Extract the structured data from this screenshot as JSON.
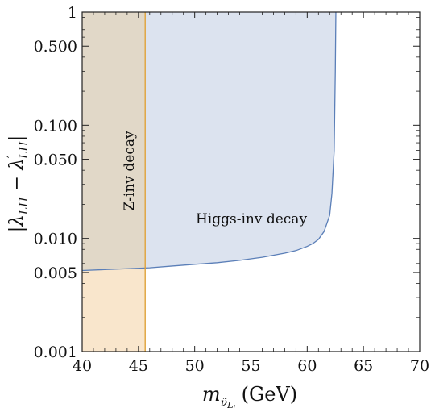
{
  "chart_data": {
    "type": "area",
    "xlabel": "m_ν̃Li (GeV)",
    "ylabel": "|λLH − λ′LH|",
    "xlim": [
      40,
      70
    ],
    "ylim": [
      0.001,
      1
    ],
    "yscale": "log",
    "grid": false,
    "x_ticks": [
      40,
      45,
      50,
      55,
      60,
      65,
      70
    ],
    "x_tick_labels": [
      "40",
      "45",
      "50",
      "55",
      "60",
      "65",
      "70"
    ],
    "y_ticks": [
      0.001,
      0.005,
      0.01,
      0.05,
      0.1,
      0.5,
      1
    ],
    "y_tick_labels": [
      "0.001",
      "0.005",
      "0.010",
      "0.050",
      "0.100",
      "0.500",
      "1"
    ],
    "series": [
      {
        "name": "Z-inv decay",
        "kind": "vertical-band",
        "x_range": [
          40,
          45.6
        ],
        "fill": "#f9e6cc",
        "stroke": "#e0a23a"
      },
      {
        "name": "Higgs-inv decay",
        "kind": "region-above-curve",
        "fill": "#dce3ef",
        "stroke": "#5b7fb8",
        "x": [
          40,
          42,
          44,
          46,
          48,
          50,
          52,
          54,
          56,
          58,
          59,
          60,
          60.5,
          61,
          61.5,
          62,
          62.2,
          62.4,
          62.5,
          62.55
        ],
        "y": [
          0.0052,
          0.0053,
          0.0054,
          0.0055,
          0.0057,
          0.0059,
          0.0061,
          0.0064,
          0.0068,
          0.0074,
          0.0078,
          0.0085,
          0.009,
          0.0098,
          0.0115,
          0.016,
          0.025,
          0.06,
          0.3,
          1.0
        ]
      }
    ],
    "annotations": [
      "Z-inv decay",
      "Higgs-inv decay"
    ]
  },
  "colors": {
    "z_band": "#f9e6cc",
    "z_line": "#e0a23a",
    "higgs_fill": "#dce3ef",
    "higgs_line": "#5b7fb8",
    "overlap": "#e1d8c8"
  }
}
